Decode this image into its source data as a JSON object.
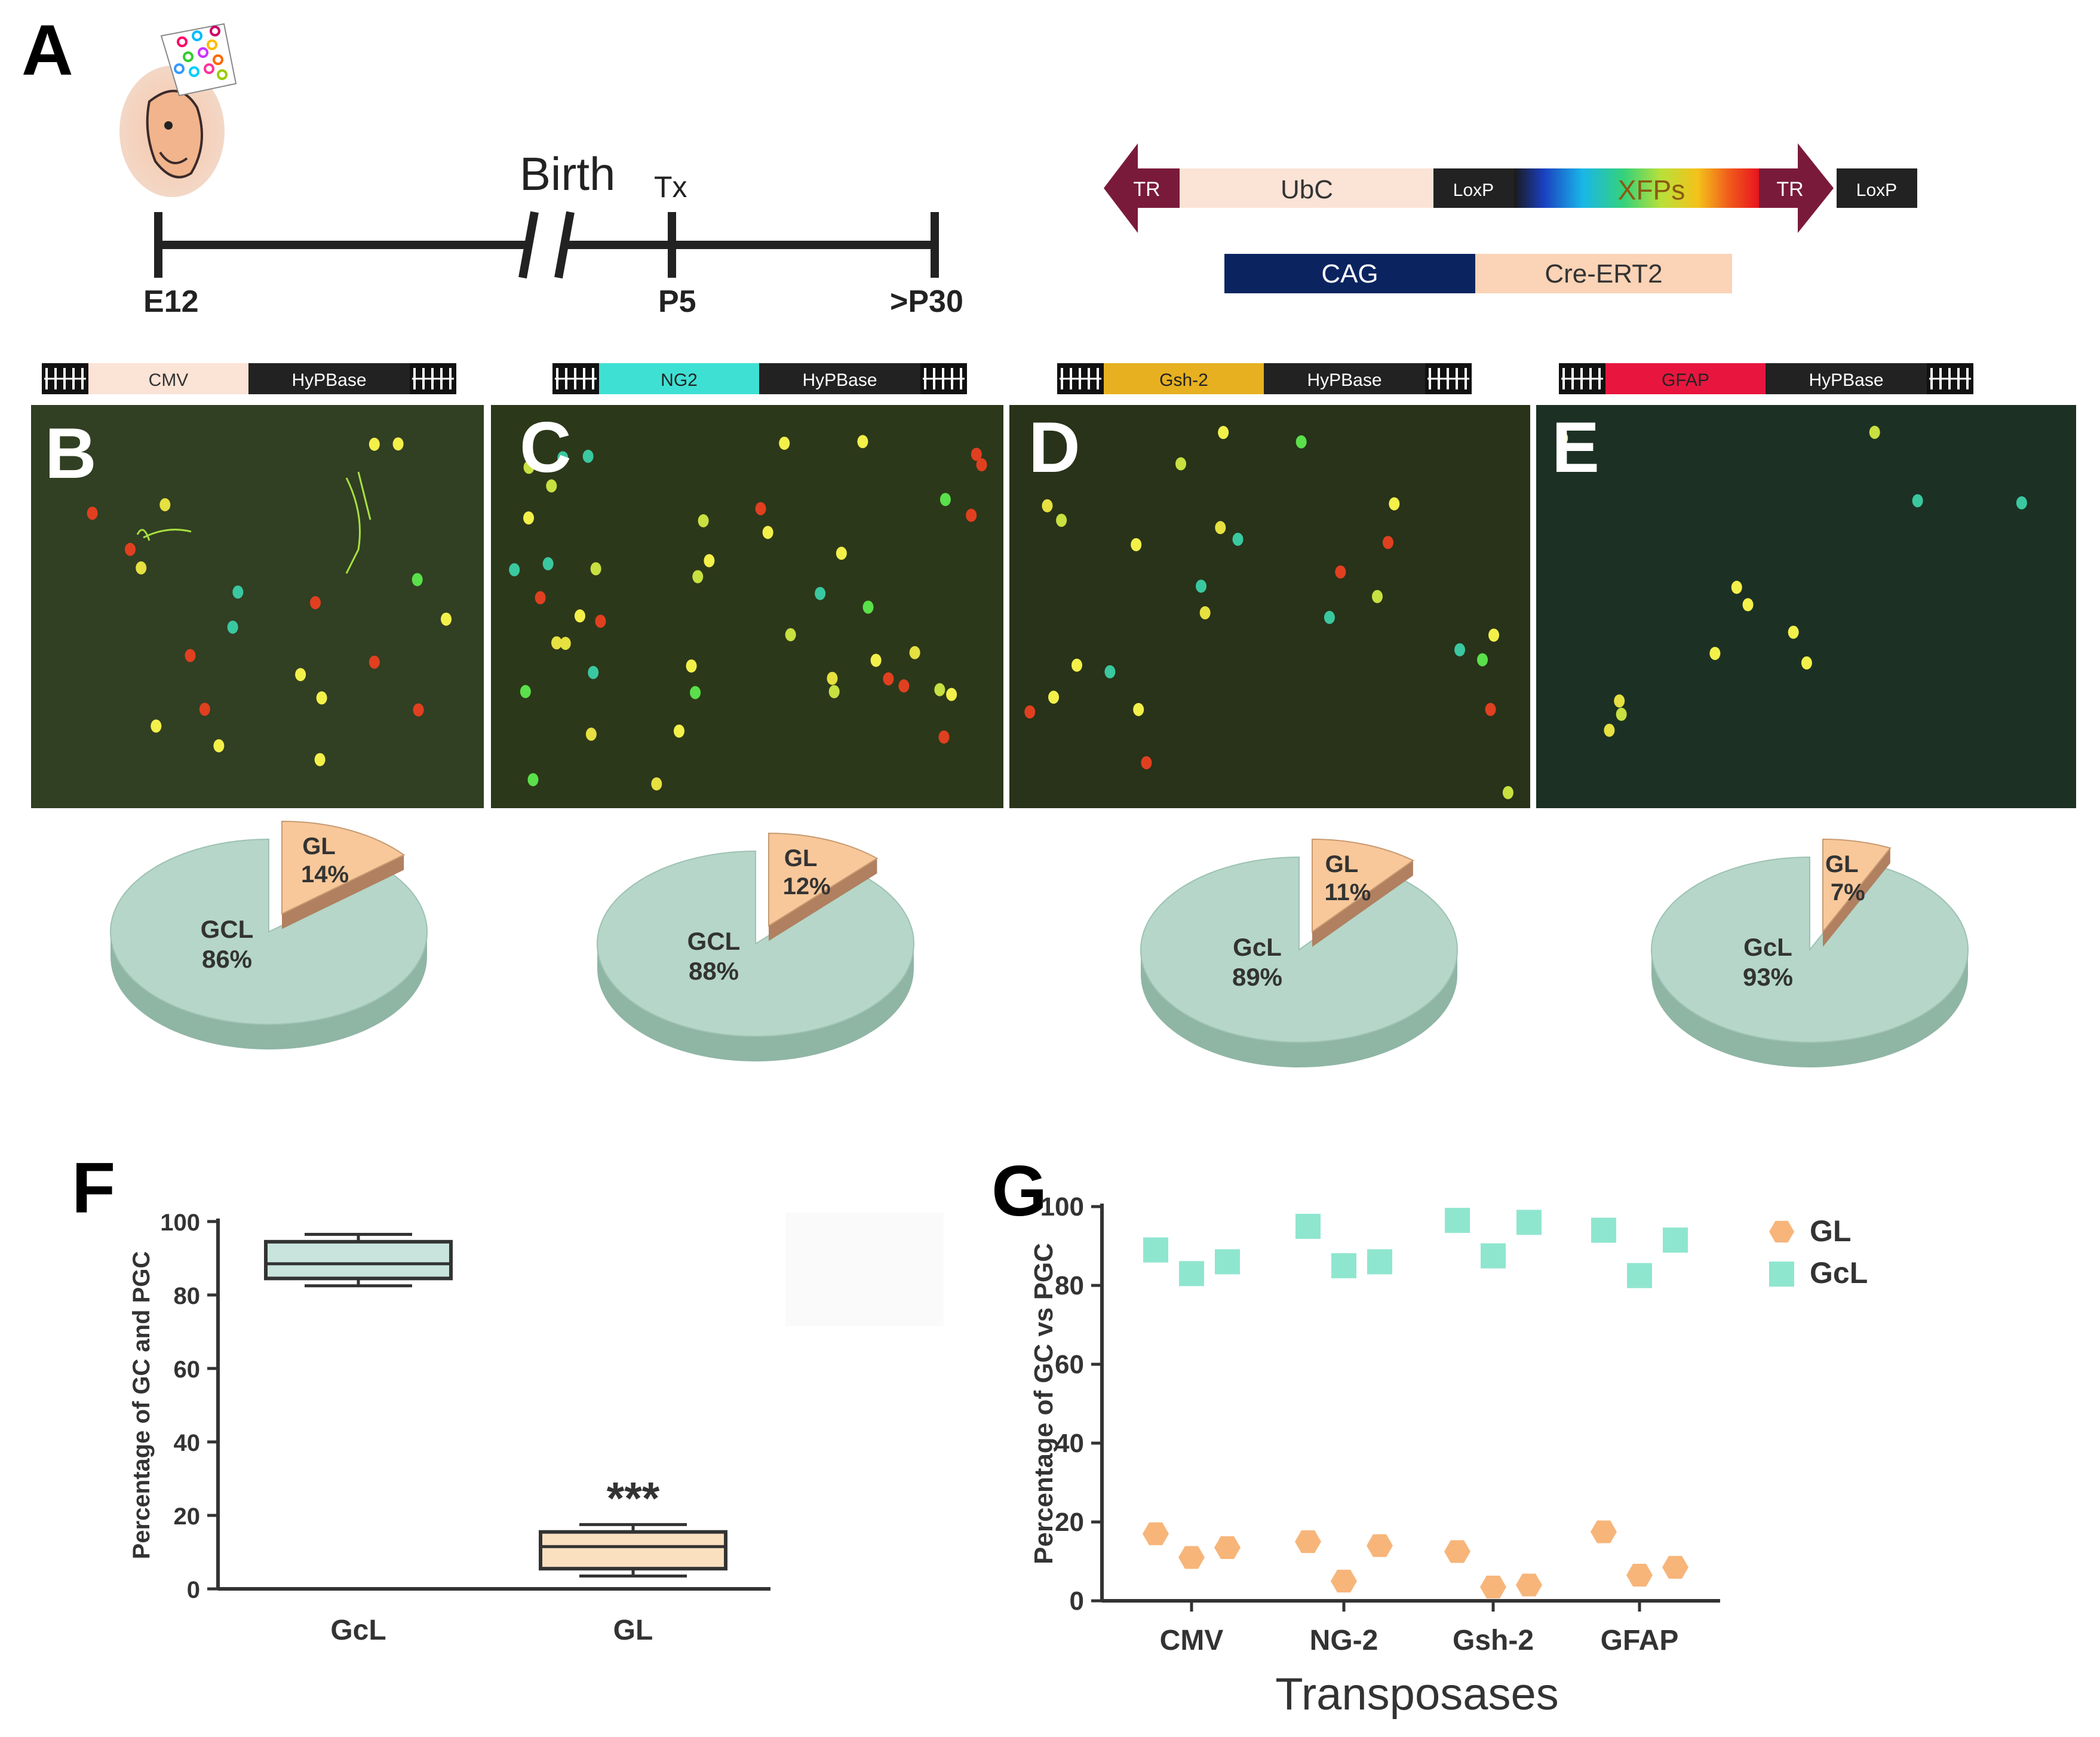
{
  "panel_letters": {
    "a": "A",
    "b": "B",
    "c": "C",
    "d": "D",
    "e": "E",
    "f": "F",
    "g": "G"
  },
  "timeline": {
    "start": "E12",
    "birth": "Birth",
    "tx": "Tx",
    "p5": "P5",
    "end": ">P30"
  },
  "construct": {
    "tr_left": "TR",
    "ubc": "UbC",
    "loxp_1": "LoxP",
    "xfps": "XFPs",
    "tr_right": "TR",
    "loxp_2": "LoxP",
    "cag": "CAG",
    "cre": "Cre-ERT2"
  },
  "transposase_constructs": [
    {
      "promoter": "CMV",
      "enzyme": "HyPBase",
      "color": "#fbe3d6",
      "text_color": "#333333"
    },
    {
      "promoter": "NG2",
      "enzyme": "HyPBase",
      "color": "#3fe0d4",
      "text_color": "#222222"
    },
    {
      "promoter": "Gsh-2",
      "enzyme": "HyPBase",
      "color": "#e6b020",
      "text_color": "#222222"
    },
    {
      "promoter": "GFAP",
      "enzyme": "HyPBase",
      "color": "#e8163f",
      "text_color": "#222222"
    }
  ],
  "pies": [
    {
      "gl_label": "GL",
      "gl_pct": "14%",
      "gl_value": 14,
      "main_label": "GCL",
      "main_pct": "86%",
      "main_value": 86
    },
    {
      "gl_label": "GL",
      "gl_pct": "12%",
      "gl_value": 12,
      "main_label": "GCL",
      "main_pct": "88%",
      "main_value": 88
    },
    {
      "gl_label": "GL",
      "gl_pct": "11%",
      "gl_value": 11,
      "main_label": "GcL",
      "main_pct": "89%",
      "main_value": 89
    },
    {
      "gl_label": "GL",
      "gl_pct": "7%",
      "gl_value": 7,
      "main_label": "GcL",
      "main_pct": "93%",
      "main_value": 93
    }
  ],
  "colors": {
    "gcl": "#b5d6c8",
    "gcl_side": "#8fb5a5",
    "gl": "#f8c89a",
    "gl_side": "#b08060",
    "box_gcl": "#c8e4dc",
    "box_gl": "#fbe0c0",
    "scatter_gl": "#f7b57a",
    "scatter_gcl": "#8fe6cf",
    "tr": "#7a1a3a",
    "cag": "#0b2460",
    "peach": "#fbe3d6",
    "loxp": "#222222"
  },
  "chart_data": [
    {
      "type": "box",
      "title": "",
      "ylabel": "Percentage of GC and PGC",
      "ylim": [
        0,
        100
      ],
      "yticks": [
        "0",
        "20",
        "40",
        "60",
        "80",
        "100"
      ],
      "categories": [
        "GcL",
        "GL"
      ],
      "boxes": [
        {
          "name": "GcL",
          "min": 82.5,
          "q1": 84.5,
          "median": 88.5,
          "q3": 94.5,
          "max": 96.5
        },
        {
          "name": "GL",
          "min": 3.5,
          "q1": 5.5,
          "median": 11.5,
          "q3": 15.5,
          "max": 17.5
        }
      ],
      "annotation": "***"
    },
    {
      "type": "scatter",
      "xlabel": "Transposases",
      "ylabel": "Percentage of GC vs PGC",
      "ylim": [
        0,
        100
      ],
      "yticks": [
        "0",
        "20",
        "40",
        "60",
        "80",
        "100"
      ],
      "categories": [
        "CMV",
        "NG-2",
        "Gsh-2",
        "GFAP"
      ],
      "series": [
        {
          "name": "GL",
          "marker": "hexagon",
          "values": [
            [
              17,
              11,
              13.5
            ],
            [
              15,
              5,
              14
            ],
            [
              12.5,
              3.5,
              4
            ],
            [
              17.5,
              6.5,
              8.5
            ]
          ]
        },
        {
          "name": "GcL",
          "marker": "square",
          "values": [
            [
              89,
              83,
              86
            ],
            [
              95,
              85,
              86
            ],
            [
              96.5,
              87.5,
              96
            ],
            [
              94,
              82.5,
              91.5
            ]
          ]
        }
      ]
    }
  ]
}
